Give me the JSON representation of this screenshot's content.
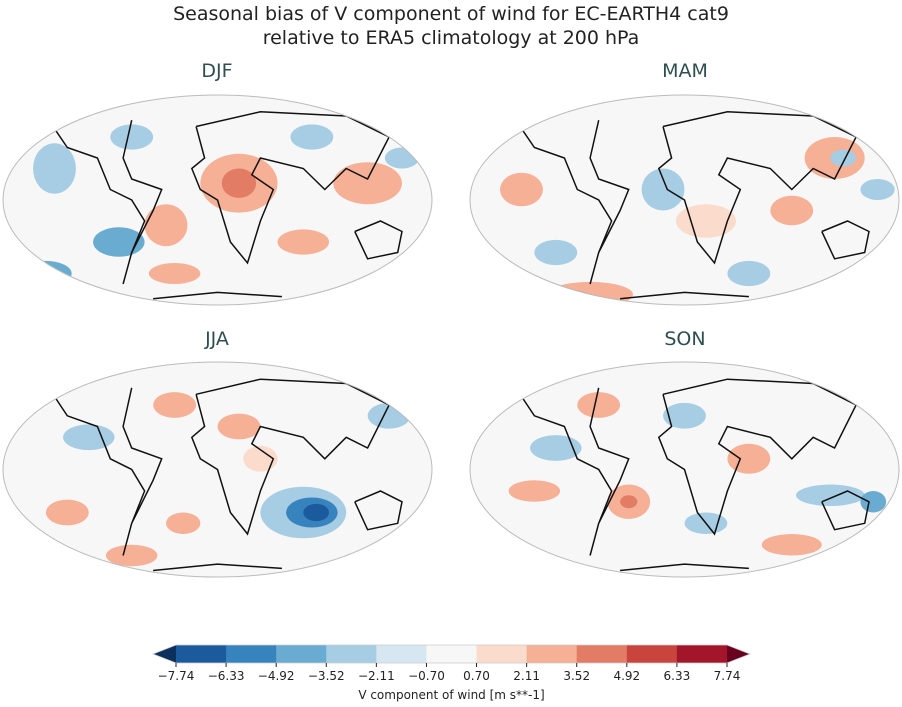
{
  "title_line1": "Seasonal bias of V component of wind for EC-EARTH4 cat9",
  "title_line2": "relative to ERA5 climatology at 200 hPa",
  "panels": [
    {
      "label": "DJF"
    },
    {
      "label": "MAM"
    },
    {
      "label": "JJA"
    },
    {
      "label": "SON"
    }
  ],
  "colorbar": {
    "label": "V component of wind [m s**-1]",
    "ticks": [
      "−7.74",
      "−6.33",
      "−4.92",
      "−3.52",
      "−2.11",
      "−0.70",
      "0.70",
      "2.11",
      "3.52",
      "4.92",
      "6.33",
      "7.74"
    ],
    "colors": [
      "#1c5a9e",
      "#3783bd",
      "#6aabd1",
      "#a6cde3",
      "#d6e7f1",
      "#f7f7f7",
      "#fbdbcb",
      "#f5b096",
      "#e27c64",
      "#c8443c",
      "#a3152a"
    ],
    "under_color": "#0d2f5e",
    "over_color": "#6a0020",
    "extend": "both"
  }
}
